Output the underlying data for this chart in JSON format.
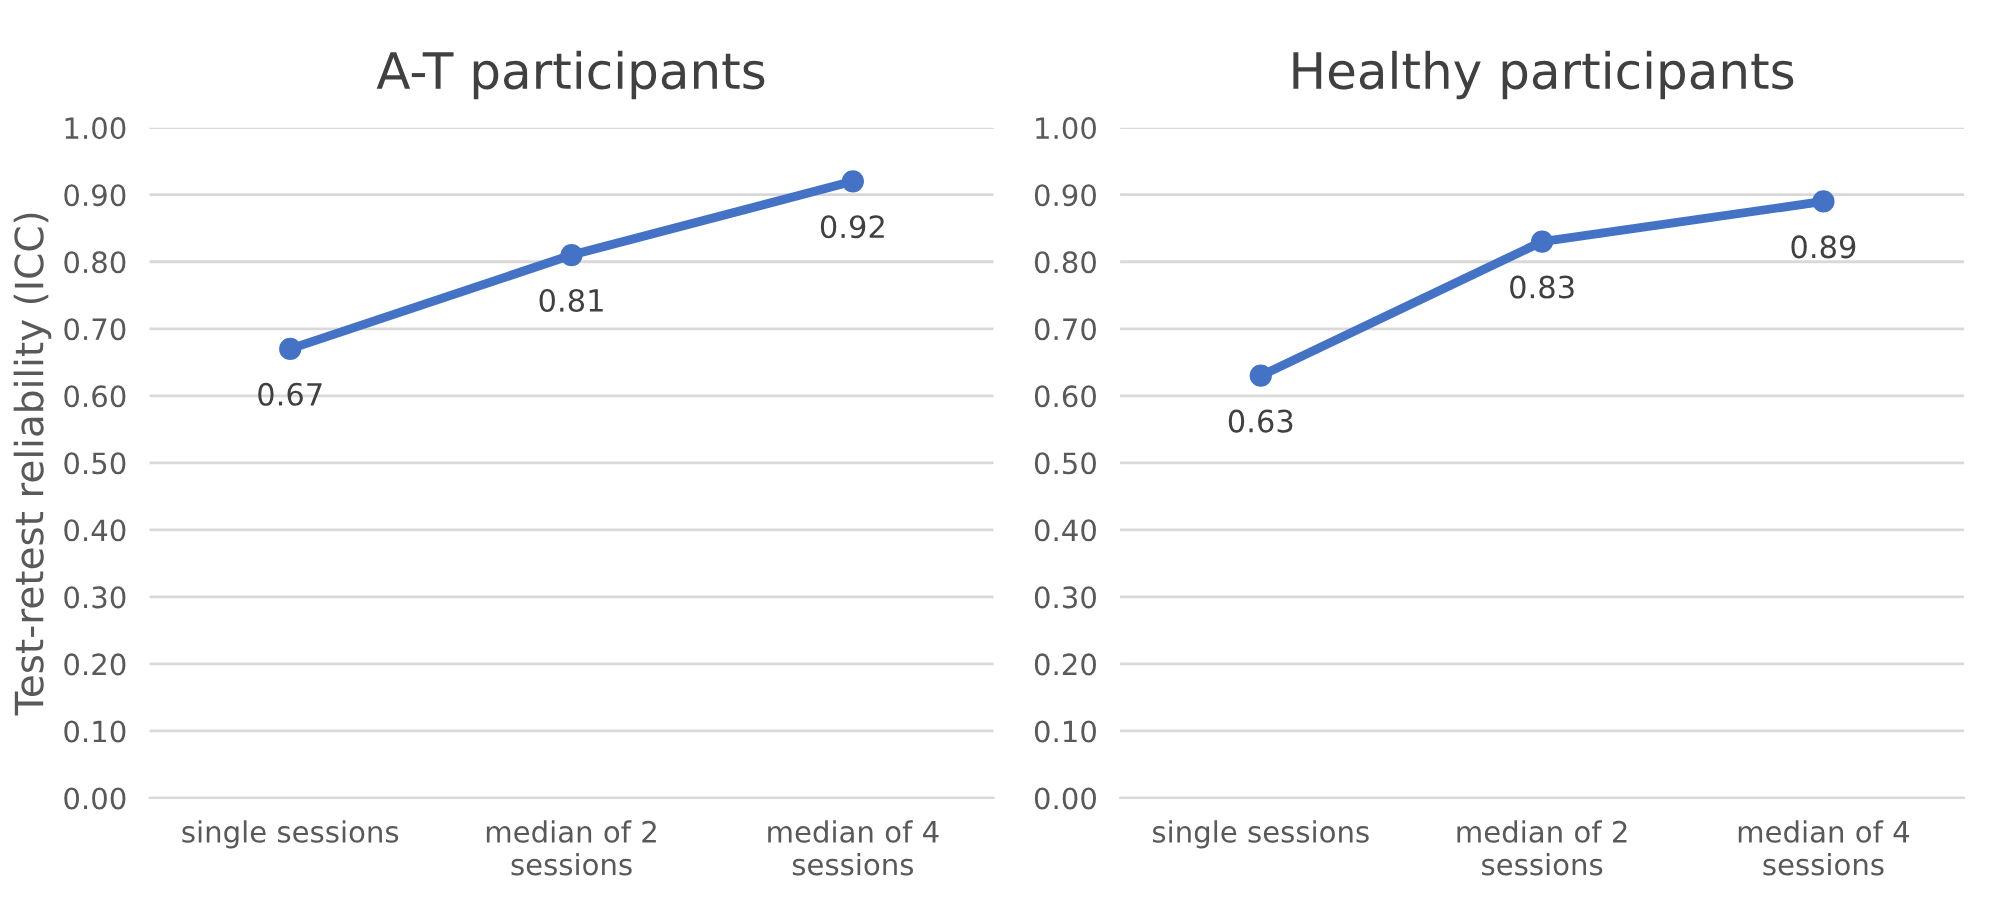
{
  "chart_data": [
    {
      "type": "line",
      "title": "A-T participants",
      "ylabel": "Test-retest reliability (ICC)",
      "categories": [
        "single sessions",
        "median of 2\nsessions",
        "median of 4\nsessions"
      ],
      "series": [
        {
          "color": "#4472c4",
          "values": [
            0.67,
            0.81,
            0.92
          ]
        }
      ],
      "ylim": [
        0,
        1
      ],
      "yticks": [
        {
          "value": 0,
          "label": "0.00"
        },
        {
          "value": 0.1,
          "label": "0.10"
        },
        {
          "value": 0.2,
          "label": "0.20"
        },
        {
          "value": 0.3,
          "label": "0.30"
        },
        {
          "value": 0.4,
          "label": "0.40"
        },
        {
          "value": 0.5,
          "label": "0.50"
        },
        {
          "value": 0.6,
          "label": "0.60"
        },
        {
          "value": 0.7,
          "label": "0.70"
        },
        {
          "value": 0.8,
          "label": "0.80"
        },
        {
          "value": 0.9,
          "label": "0.90"
        },
        {
          "value": 1,
          "label": "1.00"
        }
      ],
      "grid": "y",
      "marker": "circle",
      "line_style": "solid",
      "data_labels": true
    },
    {
      "type": "line",
      "title": "Healthy participants",
      "categories": [
        "single sessions",
        "median of 2\nsessions",
        "median of 4\nsessions"
      ],
      "series": [
        {
          "color": "#4472c4",
          "values": [
            0.63,
            0.83,
            0.89
          ]
        }
      ],
      "ylim": [
        0,
        1
      ],
      "yticks": [
        {
          "value": 0,
          "label": "0.00"
        },
        {
          "value": 0.1,
          "label": "0.10"
        },
        {
          "value": 0.2,
          "label": "0.20"
        },
        {
          "value": 0.3,
          "label": "0.30"
        },
        {
          "value": 0.4,
          "label": "0.40"
        },
        {
          "value": 0.5,
          "label": "0.50"
        },
        {
          "value": 0.6,
          "label": "0.60"
        },
        {
          "value": 0.7,
          "label": "0.70"
        },
        {
          "value": 0.8,
          "label": "0.80"
        },
        {
          "value": 0.9,
          "label": "0.90"
        },
        {
          "value": 1,
          "label": "1.00"
        }
      ],
      "grid": "y",
      "marker": "circle",
      "line_style": "solid",
      "data_labels": true
    }
  ]
}
